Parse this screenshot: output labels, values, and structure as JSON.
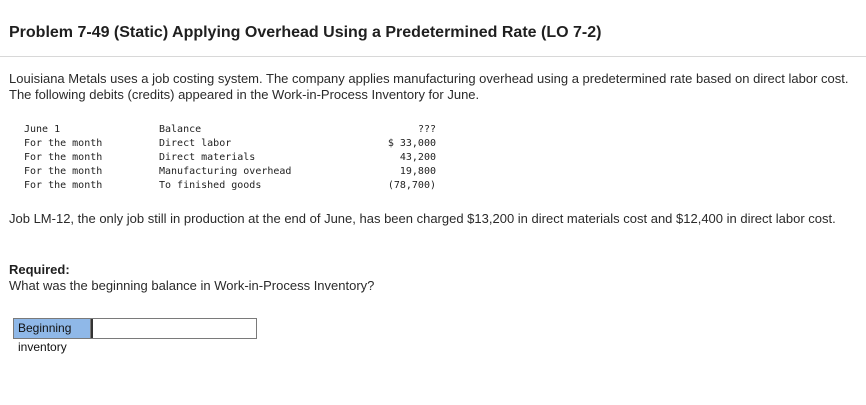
{
  "problem": {
    "title": "Problem 7-49 (Static) Applying Overhead Using a Predetermined Rate (LO 7-2)",
    "intro": "Louisiana Metals uses a job costing system. The company applies manufacturing overhead using a predetermined rate based on direct labor cost. The following debits (credits) appeared in the Work-in-Process Inventory for June.",
    "ledger": [
      {
        "date": "June 1",
        "description": "Balance",
        "amount": "???"
      },
      {
        "date": "For the month",
        "description": "Direct labor",
        "amount": "$ 33,000"
      },
      {
        "date": "For the month",
        "description": "Direct materials",
        "amount": "43,200"
      },
      {
        "date": "For the month",
        "description": "Manufacturing overhead",
        "amount": "19,800"
      },
      {
        "date": "For the month",
        "description": "To finished goods",
        "amount": "(78,700)"
      }
    ],
    "job_note": "Job LM-12, the only job still in production at the end of June, has been charged $13,200 in direct materials cost and $12,400 in direct labor cost.",
    "required_label": "Required:",
    "required_question": "What was the beginning balance in Work-in-Process Inventory?"
  },
  "answer": {
    "label": "Beginning inventory",
    "value": ""
  }
}
